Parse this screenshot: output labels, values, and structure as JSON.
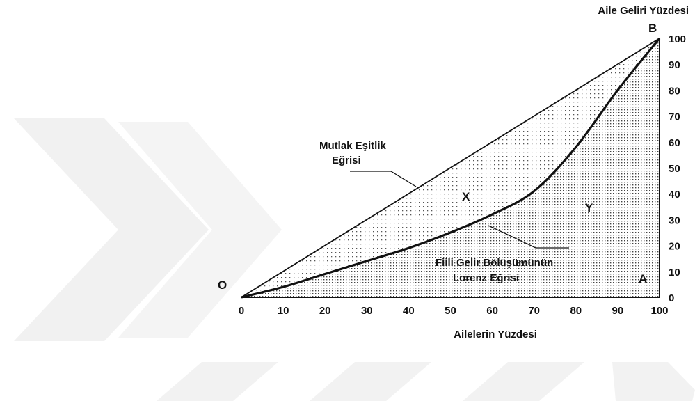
{
  "chart_data": {
    "type": "line",
    "title": "",
    "xlabel": "Ailelerin Yüzdesi",
    "ylabel": "Aile Geliri Yüzdesi",
    "xlim": [
      0,
      100
    ],
    "ylim": [
      0,
      100
    ],
    "x_ticks": [
      "0",
      "10",
      "20",
      "30",
      "40",
      "50",
      "60",
      "70",
      "80",
      "90",
      "100"
    ],
    "y_ticks": [
      "0",
      "10",
      "20",
      "30",
      "40",
      "50",
      "60",
      "70",
      "80",
      "90",
      "100"
    ],
    "grid": false,
    "series": [
      {
        "name": "Mutlak Eşitlik Eğrisi",
        "x": [
          0,
          100
        ],
        "y": [
          0,
          100
        ]
      },
      {
        "name": "Fiili Gelir Bölüşümünün Lorenz Eğrisi",
        "x": [
          0,
          10,
          20,
          30,
          40,
          50,
          60,
          70,
          80,
          90,
          100
        ],
        "y": [
          0,
          4,
          9,
          14,
          19,
          25,
          32,
          41,
          58,
          80,
          100
        ]
      }
    ],
    "point_labels": {
      "origin": "O",
      "top": "B",
      "corner": "A"
    },
    "region_labels": {
      "between": "X",
      "below": "Y"
    },
    "annotations": {
      "equality": [
        "Mutlak Eşitlik",
        "Eğrisi"
      ],
      "lorenz": [
        "Fiili Gelir Bölüşümünün",
        "Lorenz Eğrisi"
      ]
    },
    "colors": {
      "line": "#111111",
      "dots": "#555555",
      "watermark": "#f1f1f1"
    }
  }
}
